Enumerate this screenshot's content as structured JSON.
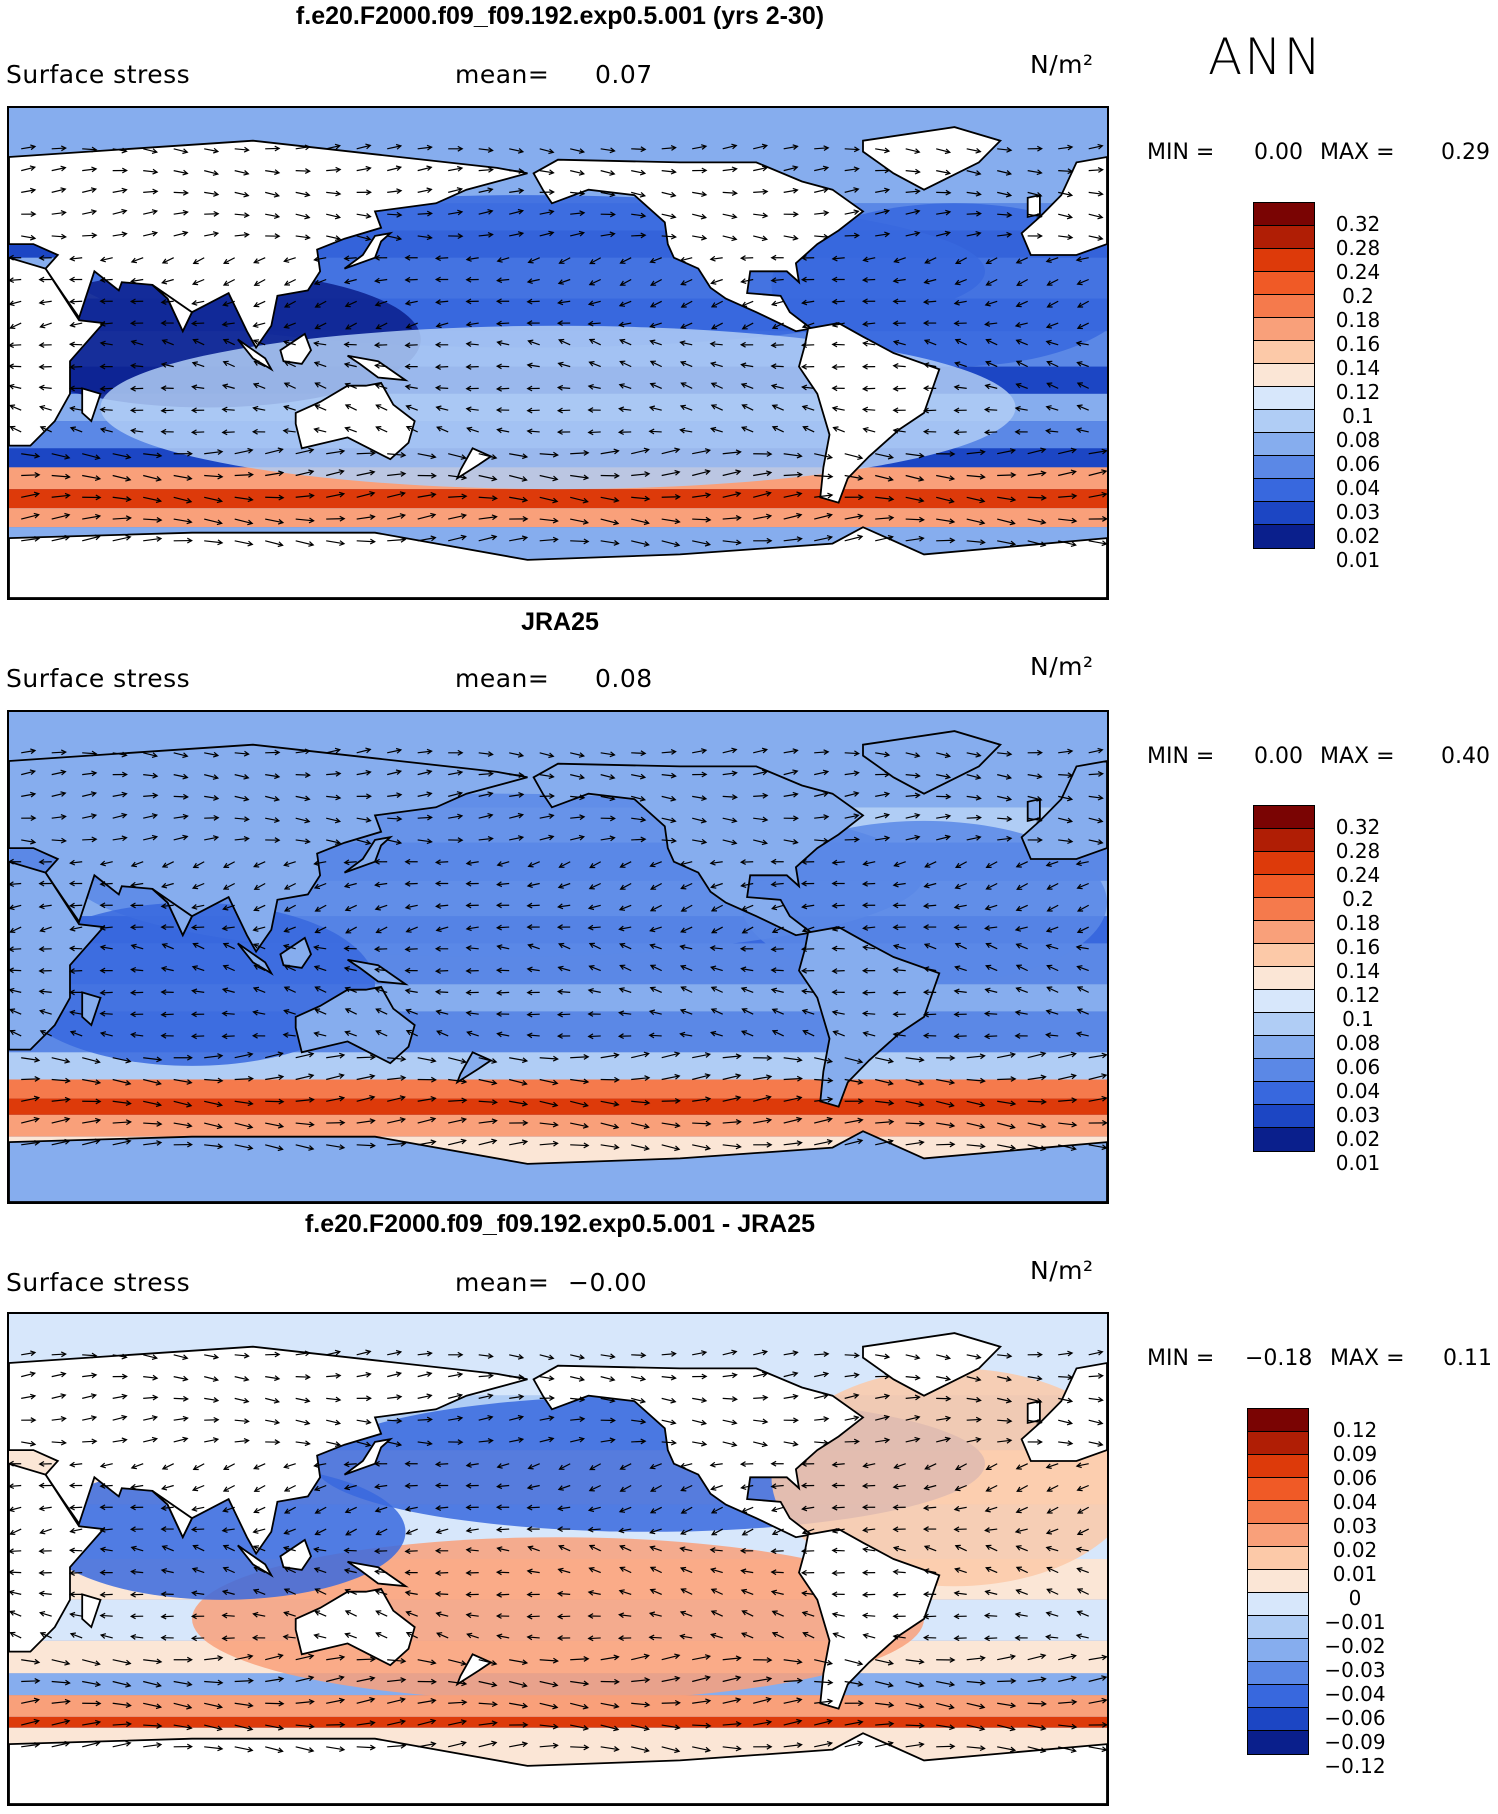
{
  "panels": [
    {
      "title": "f.e20.F2000.f09_f09.192.exp0.5.001 (yrs 2-30)",
      "variable": "Surface stress",
      "mean_label": "mean=",
      "mean_value": "0.07",
      "units": "N/m²",
      "min_label": "MIN =",
      "min_value": "0.00",
      "max_label": "MAX =",
      "max_value": "0.29",
      "colorbar_levels": [
        "0.32",
        "0.28",
        "0.24",
        "0.2",
        "0.18",
        "0.16",
        "0.14",
        "0.12",
        "0.1",
        "0.08",
        "0.06",
        "0.04",
        "0.03",
        "0.02",
        "0.01"
      ]
    },
    {
      "title": "JRA25",
      "variable": "Surface stress",
      "mean_label": "mean=",
      "mean_value": "0.08",
      "units": "N/m²",
      "min_label": "MIN =",
      "min_value": "0.00",
      "max_label": "MAX =",
      "max_value": "0.40",
      "colorbar_levels": [
        "0.32",
        "0.28",
        "0.24",
        "0.2",
        "0.18",
        "0.16",
        "0.14",
        "0.12",
        "0.1",
        "0.08",
        "0.06",
        "0.04",
        "0.03",
        "0.02",
        "0.01"
      ]
    },
    {
      "title": "f.e20.F2000.f09_f09.192.exp0.5.001 - JRA25",
      "variable": "Surface stress",
      "mean_label": "mean=",
      "mean_value": "−0.00",
      "units": "N/m²",
      "min_label": "MIN =",
      "min_value": "−0.18",
      "max_label": "MAX =",
      "max_value": "0.11",
      "colorbar_levels": [
        "0.12",
        "0.09",
        "0.06",
        "0.04",
        "0.03",
        "0.02",
        "0.01",
        "0",
        "−0.01",
        "−0.02",
        "−0.03",
        "−0.04",
        "−0.06",
        "−0.09",
        "−0.12"
      ]
    }
  ],
  "season": "ANN",
  "colors": {
    "abs_scale": [
      "#7a0403",
      "#b01e05",
      "#dd3a0a",
      "#f05a26",
      "#f57a4c",
      "#f9a07a",
      "#fcc9a8",
      "#fbe6d6",
      "#d7e7fb",
      "#b0cdf5",
      "#86adee",
      "#5b88e6",
      "#3868de",
      "#1c46c4",
      "#0a1f8c"
    ],
    "diff_scale": [
      "#7a0403",
      "#b01e05",
      "#dd3a0a",
      "#f05a26",
      "#f57a4c",
      "#f9a07a",
      "#fcc9a8",
      "#fbe6d6",
      "#d7e7fb",
      "#b0cdf5",
      "#86adee",
      "#5b88e6",
      "#3868de",
      "#1c46c4",
      "#0a1f8c"
    ],
    "land": "#ffffff"
  }
}
